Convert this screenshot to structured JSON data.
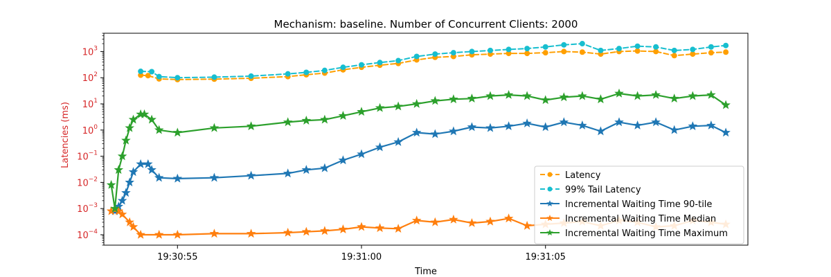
{
  "chart_data": {
    "type": "line",
    "title": "Mechanism: baseline. Number of Concurrent Clients: 2000",
    "xlabel": "Time",
    "ylabel": "Latencies (ms)",
    "yscale": "log",
    "ylim": [
      4e-05,
      5000
    ],
    "xlim": [
      -5.0,
      12.5
    ],
    "x_ticks": [
      {
        "value": -3.0,
        "label": "19:30:55"
      },
      {
        "value": 2.0,
        "label": "19:31:00"
      },
      {
        "value": 7.0,
        "label": "19:31:05"
      }
    ],
    "y_ticks": [
      {
        "value": 0.0001,
        "base": "10",
        "exp": "−4"
      },
      {
        "value": 0.001,
        "base": "10",
        "exp": "−3"
      },
      {
        "value": 0.01,
        "base": "10",
        "exp": "−2"
      },
      {
        "value": 0.1,
        "base": "10",
        "exp": "−1"
      },
      {
        "value": 1,
        "base": "10",
        "exp": "0"
      },
      {
        "value": 10,
        "base": "10",
        "exp": "1"
      },
      {
        "value": 100,
        "base": "10",
        "exp": "2"
      },
      {
        "value": 1000,
        "base": "10",
        "exp": "3"
      }
    ],
    "legend_position": "lower-right",
    "series": [
      {
        "name": "Latency",
        "color": "#ff9f00",
        "style": "dashed",
        "marker": "dot",
        "x": [
          -4.0,
          -3.8,
          -3.5,
          -3.0,
          -2.0,
          -1.0,
          0.0,
          0.5,
          1.0,
          1.5,
          2.0,
          2.5,
          3.0,
          3.5,
          4.0,
          4.5,
          5.0,
          5.5,
          6.0,
          6.5,
          7.0,
          7.5,
          8.0,
          8.5,
          9.0,
          9.5,
          10.0,
          10.5,
          11.0,
          11.5,
          11.9
        ],
        "values": [
          125,
          120,
          90,
          85,
          88,
          95,
          110,
          130,
          150,
          200,
          250,
          300,
          350,
          480,
          600,
          650,
          750,
          800,
          850,
          850,
          900,
          1000,
          950,
          800,
          1000,
          1050,
          1000,
          700,
          800,
          900,
          950
        ]
      },
      {
        "name": "99% Tail Latency",
        "color": "#17becf",
        "style": "dashed",
        "marker": "dot",
        "x": [
          -4.0,
          -3.7,
          -3.5,
          -3.0,
          -2.0,
          -1.0,
          0.0,
          0.5,
          1.0,
          1.5,
          2.0,
          2.5,
          3.0,
          3.5,
          4.0,
          4.5,
          5.0,
          5.5,
          6.0,
          6.5,
          7.0,
          7.5,
          8.0,
          8.5,
          9.0,
          9.5,
          10.0,
          10.5,
          11.0,
          11.5,
          11.9
        ],
        "values": [
          175,
          170,
          110,
          100,
          105,
          115,
          140,
          160,
          190,
          250,
          310,
          380,
          450,
          650,
          800,
          900,
          1000,
          1100,
          1200,
          1300,
          1500,
          1800,
          2000,
          1100,
          1300,
          1600,
          1500,
          1100,
          1200,
          1500,
          1700
        ]
      },
      {
        "name": "Incremental Waiting Time 90-tile",
        "color": "#1f77b4",
        "style": "solid",
        "marker": "star",
        "x": [
          -4.7,
          -4.6,
          -4.5,
          -4.4,
          -4.3,
          -4.2,
          -4.0,
          -3.8,
          -3.7,
          -3.5,
          -3.0,
          -2.0,
          -1.0,
          0.0,
          0.5,
          1.0,
          1.5,
          2.0,
          2.5,
          3.0,
          3.5,
          4.0,
          4.5,
          5.0,
          5.5,
          6.0,
          6.5,
          7.0,
          7.5,
          8.0,
          8.5,
          9.0,
          9.5,
          10.0,
          10.5,
          11.0,
          11.5,
          11.9
        ],
        "values": [
          0.0008,
          0.0012,
          0.002,
          0.004,
          0.01,
          0.025,
          0.05,
          0.05,
          0.03,
          0.015,
          0.014,
          0.015,
          0.018,
          0.022,
          0.03,
          0.035,
          0.07,
          0.12,
          0.22,
          0.35,
          0.8,
          0.7,
          0.9,
          1.3,
          1.2,
          1.4,
          1.8,
          1.3,
          2.0,
          1.5,
          0.9,
          2.0,
          1.5,
          2.0,
          1.0,
          1.4,
          1.5,
          0.8
        ]
      },
      {
        "name": "Incremental Waiting Time Median",
        "color": "#ff7f0e",
        "style": "solid",
        "marker": "star",
        "x": [
          -4.8,
          -4.6,
          -4.5,
          -4.3,
          -4.2,
          -4.0,
          -3.5,
          -3.0,
          -2.0,
          -1.0,
          0.0,
          0.5,
          1.0,
          1.5,
          2.0,
          2.5,
          3.0,
          3.5,
          4.0,
          4.5,
          5.0,
          5.5,
          6.0,
          6.5,
          7.0,
          7.5,
          8.0,
          8.5,
          9.0,
          9.5,
          10.0,
          10.5,
          11.0,
          11.5,
          11.9
        ],
        "values": [
          0.0008,
          0.0008,
          0.0006,
          0.0003,
          0.0002,
          0.0001,
          0.0001,
          0.0001,
          0.00011,
          0.00011,
          0.00012,
          0.00013,
          0.00014,
          0.00016,
          0.0002,
          0.00018,
          0.00017,
          0.00035,
          0.0003,
          0.00038,
          0.00028,
          0.00032,
          0.00042,
          0.00022,
          0.00025,
          0.00028,
          0.00032,
          0.00022,
          0.00035,
          0.0003,
          0.0002,
          0.00022,
          0.00035,
          0.0003,
          0.00025
        ]
      },
      {
        "name": "Incremental Waiting Time Maximum",
        "color": "#2ca02c",
        "style": "solid",
        "marker": "star",
        "x": [
          -4.8,
          -4.7,
          -4.6,
          -4.5,
          -4.4,
          -4.3,
          -4.2,
          -4.0,
          -3.9,
          -3.7,
          -3.5,
          -3.0,
          -2.0,
          -1.0,
          0.0,
          0.5,
          1.0,
          1.5,
          2.0,
          2.5,
          3.0,
          3.5,
          4.0,
          4.5,
          5.0,
          5.5,
          6.0,
          6.5,
          7.0,
          7.5,
          8.0,
          8.5,
          9.0,
          9.5,
          10.0,
          10.5,
          11.0,
          11.5,
          11.9
        ],
        "values": [
          0.008,
          0.001,
          0.03,
          0.1,
          0.4,
          1.2,
          2.5,
          4.0,
          4.0,
          2.5,
          1.0,
          0.8,
          1.2,
          1.4,
          2.0,
          2.3,
          2.5,
          3.5,
          5.0,
          7.0,
          8.0,
          10.0,
          13.0,
          15.0,
          16.0,
          20.0,
          22.0,
          20.0,
          14.0,
          18.0,
          20.0,
          15.0,
          25.0,
          20.0,
          22.0,
          16.0,
          20.0,
          22.0,
          9.0
        ]
      }
    ]
  }
}
